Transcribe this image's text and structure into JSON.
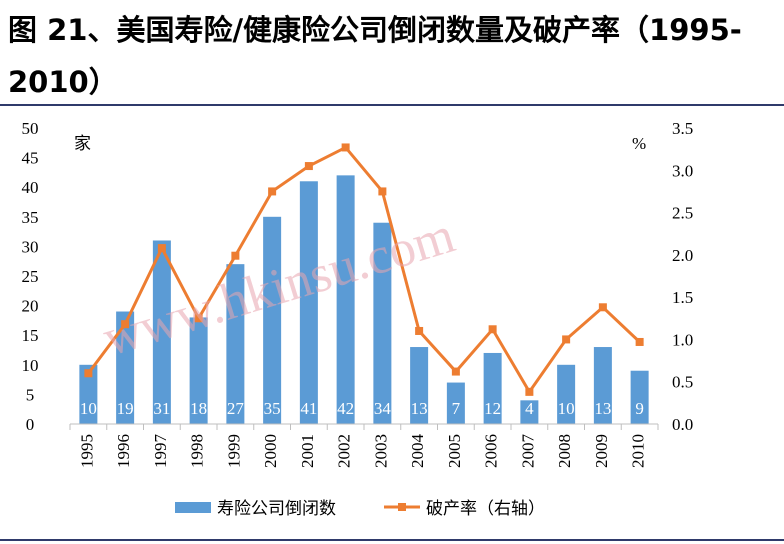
{
  "figure_title": "图 21、美国寿险/健康险公司倒闭数量及破产率（1995-2010）",
  "watermark": "www.hkinsu.com",
  "chart_data": {
    "type": "bar",
    "categories": [
      "1995",
      "1996",
      "1997",
      "1998",
      "1999",
      "2000",
      "2001",
      "2002",
      "2003",
      "2004",
      "2005",
      "2006",
      "2007",
      "2008",
      "2009",
      "2010"
    ],
    "series": [
      {
        "name": "寿险公司倒闭数",
        "type": "bar",
        "axis": "left",
        "values": [
          10,
          19,
          31,
          18,
          27,
          35,
          41,
          42,
          34,
          13,
          7,
          12,
          4,
          10,
          13,
          9
        ],
        "color": "#5b9bd5"
      },
      {
        "name": "破产率（右轴）",
        "type": "line",
        "axis": "right",
        "values": [
          0.6,
          1.18,
          2.08,
          1.25,
          1.99,
          2.75,
          3.05,
          3.27,
          2.75,
          1.1,
          0.62,
          1.12,
          0.38,
          1.0,
          1.38,
          0.97
        ],
        "color": "#ed7d31"
      }
    ],
    "y_left": {
      "unit_label": "家",
      "ylim": [
        0,
        50
      ],
      "ticks": [
        "0",
        "5",
        "10",
        "15",
        "20",
        "25",
        "30",
        "35",
        "40",
        "45",
        "50"
      ]
    },
    "y_right": {
      "unit_label": "%",
      "ylim": [
        0,
        3.5
      ],
      "ticks": [
        "0.0",
        "0.5",
        "1.0",
        "1.5",
        "2.0",
        "2.5",
        "3.0",
        "3.5"
      ]
    },
    "grid": false,
    "legend": "bottom",
    "data_labels": [
      "10",
      "19",
      "31",
      "18",
      "27",
      "35",
      "41",
      "42",
      "34",
      "13",
      "7",
      "12",
      "4",
      "10",
      "13",
      "9"
    ]
  }
}
